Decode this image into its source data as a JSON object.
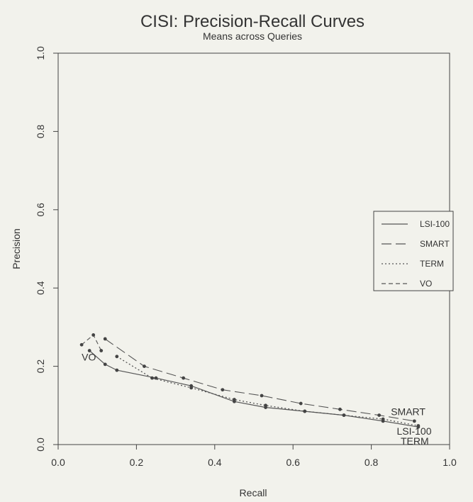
{
  "chart_data": {
    "type": "line",
    "title": "CISI: Precision-Recall Curves",
    "subtitle": "Means across Queries",
    "xlabel": "Recall",
    "ylabel": "Precision",
    "xlim": [
      0.0,
      1.0
    ],
    "ylim": [
      0.0,
      1.0
    ],
    "xticks": [
      "0.0",
      "0.2",
      "0.4",
      "0.6",
      "0.8",
      "1.0"
    ],
    "yticks": [
      "0.0",
      "0.2",
      "0.4",
      "0.6",
      "0.8",
      "1.0"
    ],
    "grid": false,
    "legend_position": "right",
    "series": [
      {
        "name": "LSI-100",
        "dash": "solid",
        "points": [
          [
            0.08,
            0.24
          ],
          [
            0.12,
            0.205
          ],
          [
            0.15,
            0.19
          ],
          [
            0.25,
            0.17
          ],
          [
            0.34,
            0.15
          ],
          [
            0.45,
            0.11
          ],
          [
            0.53,
            0.095
          ],
          [
            0.63,
            0.085
          ],
          [
            0.73,
            0.075
          ],
          [
            0.83,
            0.06
          ],
          [
            0.92,
            0.045
          ]
        ]
      },
      {
        "name": "SMART",
        "dash": "longdash",
        "points": [
          [
            0.12,
            0.27
          ],
          [
            0.22,
            0.2
          ],
          [
            0.32,
            0.17
          ],
          [
            0.42,
            0.14
          ],
          [
            0.52,
            0.125
          ],
          [
            0.62,
            0.105
          ],
          [
            0.72,
            0.09
          ],
          [
            0.82,
            0.075
          ],
          [
            0.91,
            0.06
          ]
        ]
      },
      {
        "name": "TERM",
        "dash": "dotted",
        "points": [
          [
            0.15,
            0.225
          ],
          [
            0.24,
            0.17
          ],
          [
            0.34,
            0.145
          ],
          [
            0.45,
            0.115
          ],
          [
            0.53,
            0.1
          ],
          [
            0.63,
            0.085
          ],
          [
            0.73,
            0.075
          ],
          [
            0.83,
            0.065
          ],
          [
            0.92,
            0.048
          ]
        ]
      },
      {
        "name": "VO",
        "dash": "dashed",
        "points": [
          [
            0.06,
            0.255
          ],
          [
            0.09,
            0.28
          ],
          [
            0.11,
            0.24
          ]
        ]
      }
    ],
    "annotations": [
      {
        "text": "VO",
        "x": 0.06,
        "y": 0.215
      },
      {
        "text": "SMART",
        "x": 0.85,
        "y": 0.075
      },
      {
        "text": "LSI-100",
        "x": 0.865,
        "y": 0.025
      },
      {
        "text": "TERM",
        "x": 0.875,
        "y": 0.0
      }
    ]
  }
}
